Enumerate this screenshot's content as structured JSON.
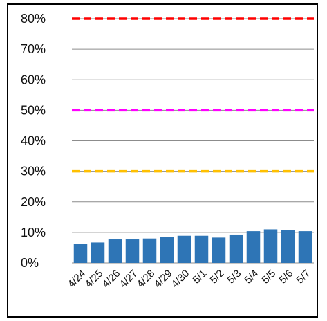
{
  "chart_data": {
    "type": "bar",
    "categories": [
      "4/24",
      "4/25",
      "4/26",
      "4/27",
      "4/28",
      "4/29",
      "4/30",
      "5/1",
      "5/2",
      "5/3",
      "5/4",
      "5/5",
      "5/6",
      "5/7"
    ],
    "series": [
      {
        "values": [
          6.2,
          6.7,
          7.7,
          7.7,
          8.0,
          8.6,
          8.9,
          8.9,
          8.3,
          9.3,
          10.4,
          11.0,
          10.8,
          10.4
        ],
        "color": "#2e75b6"
      }
    ],
    "reference_lines": [
      {
        "value": 80,
        "color": "#ff0000",
        "style": "dashed"
      },
      {
        "value": 50,
        "color": "#ff00ff",
        "style": "dashed"
      },
      {
        "value": 30,
        "color": "#ffc000",
        "style": "dashed"
      }
    ],
    "ylim": [
      0,
      80
    ],
    "yticks": [
      "0%",
      "10%",
      "20%",
      "30%",
      "40%",
      "50%",
      "60%",
      "70%",
      "80%"
    ],
    "grid": true,
    "legend": "none",
    "title": "",
    "xlabel": "",
    "ylabel": ""
  }
}
